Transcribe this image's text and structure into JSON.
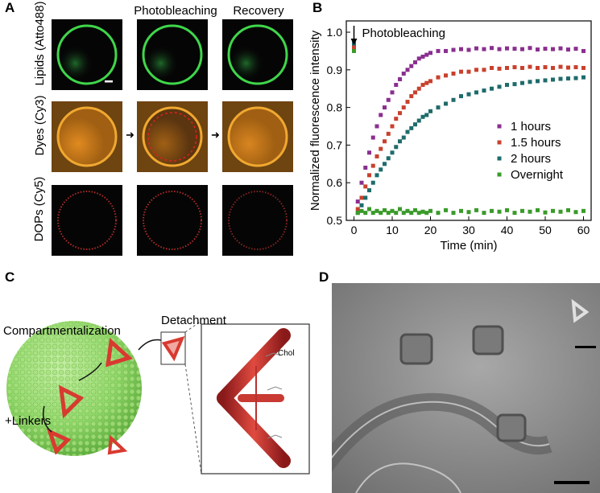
{
  "panel_a": {
    "letter": "A",
    "col_headers": [
      "Photobleaching",
      "Recovery"
    ],
    "row_labels": [
      "Lipids (Atto488)",
      "Dyes (Cy3)",
      "DOPs (Cy5)"
    ]
  },
  "panel_b": {
    "letter": "B"
  },
  "panel_c": {
    "letter": "C",
    "label_compartment": "Compartmentalization",
    "label_detachment": "Detachment",
    "label_linkers": "+Linkers",
    "label_chol": "Chol"
  },
  "panel_d": {
    "letter": "D"
  },
  "chart_data": {
    "type": "scatter",
    "xlabel": "Time (min)",
    "ylabel": "Normalized fluorescence intensity",
    "xlim": [
      -2,
      62
    ],
    "ylim": [
      0.5,
      1.03
    ],
    "xticks": [
      0,
      10,
      20,
      30,
      40,
      50,
      60
    ],
    "yticks": [
      0.5,
      0.6,
      0.7,
      0.8,
      0.9,
      1.0
    ],
    "annotation": "Photobleaching",
    "legend_position": "right",
    "series": [
      {
        "name": "1 hours",
        "color": "#8a2f8f",
        "x": [
          0,
          1,
          2,
          3,
          4,
          5,
          6,
          7,
          8,
          9,
          10,
          11,
          12,
          13,
          14,
          15,
          16,
          17,
          18,
          19,
          20,
          22,
          24,
          26,
          28,
          30,
          32,
          34,
          36,
          38,
          40,
          42,
          44,
          46,
          48,
          50,
          52,
          54,
          56,
          58,
          60
        ],
        "y": [
          0.96,
          0.55,
          0.6,
          0.64,
          0.68,
          0.72,
          0.75,
          0.78,
          0.8,
          0.82,
          0.84,
          0.86,
          0.875,
          0.89,
          0.9,
          0.91,
          0.92,
          0.93,
          0.935,
          0.94,
          0.945,
          0.95,
          0.95,
          0.953,
          0.955,
          0.953,
          0.957,
          0.955,
          0.958,
          0.955,
          0.957,
          0.956,
          0.955,
          0.958,
          0.954,
          0.956,
          0.955,
          0.957,
          0.954,
          0.956,
          0.95
        ]
      },
      {
        "name": "1.5 hours",
        "color": "#c8412d",
        "x": [
          0,
          1,
          2,
          3,
          4,
          5,
          6,
          7,
          8,
          9,
          10,
          11,
          12,
          13,
          14,
          15,
          16,
          17,
          18,
          19,
          20,
          22,
          24,
          26,
          28,
          30,
          32,
          34,
          36,
          38,
          40,
          42,
          44,
          46,
          48,
          50,
          52,
          54,
          56,
          58,
          60
        ],
        "y": [
          0.96,
          0.53,
          0.56,
          0.59,
          0.62,
          0.645,
          0.67,
          0.69,
          0.71,
          0.73,
          0.75,
          0.77,
          0.785,
          0.8,
          0.815,
          0.83,
          0.84,
          0.85,
          0.86,
          0.865,
          0.87,
          0.88,
          0.885,
          0.89,
          0.895,
          0.895,
          0.9,
          0.9,
          0.905,
          0.903,
          0.905,
          0.907,
          0.905,
          0.908,
          0.905,
          0.907,
          0.905,
          0.908,
          0.906,
          0.907,
          0.905
        ]
      },
      {
        "name": "2 hours",
        "color": "#1f6b6b",
        "x": [
          0,
          1,
          2,
          3,
          4,
          5,
          6,
          7,
          8,
          9,
          10,
          11,
          12,
          13,
          14,
          15,
          16,
          17,
          18,
          19,
          20,
          22,
          24,
          26,
          28,
          30,
          32,
          34,
          36,
          38,
          40,
          42,
          44,
          46,
          48,
          50,
          52,
          54,
          56,
          58,
          60
        ],
        "y": [
          0.97,
          0.52,
          0.54,
          0.56,
          0.58,
          0.6,
          0.62,
          0.635,
          0.65,
          0.665,
          0.68,
          0.695,
          0.71,
          0.72,
          0.735,
          0.745,
          0.755,
          0.765,
          0.775,
          0.78,
          0.79,
          0.8,
          0.81,
          0.82,
          0.83,
          0.835,
          0.84,
          0.845,
          0.85,
          0.855,
          0.86,
          0.862,
          0.865,
          0.868,
          0.87,
          0.872,
          0.874,
          0.876,
          0.877,
          0.878,
          0.88
        ]
      },
      {
        "name": "Overnight",
        "color": "#3a9a2a",
        "x": [
          0,
          1,
          2,
          3,
          4,
          5,
          6,
          7,
          8,
          9,
          10,
          11,
          12,
          13,
          14,
          15,
          16,
          17,
          18,
          19,
          20,
          22,
          24,
          26,
          28,
          30,
          32,
          34,
          36,
          38,
          40,
          42,
          44,
          46,
          48,
          50,
          52,
          54,
          56,
          58,
          60
        ],
        "y": [
          0.95,
          0.52,
          0.525,
          0.52,
          0.53,
          0.52,
          0.525,
          0.52,
          0.527,
          0.52,
          0.525,
          0.52,
          0.53,
          0.52,
          0.525,
          0.52,
          0.527,
          0.52,
          0.523,
          0.52,
          0.525,
          0.52,
          0.527,
          0.52,
          0.525,
          0.522,
          0.527,
          0.52,
          0.525,
          0.523,
          0.527,
          0.52,
          0.525,
          0.523,
          0.527,
          0.521,
          0.525,
          0.523,
          0.527,
          0.522,
          0.525
        ]
      }
    ]
  }
}
